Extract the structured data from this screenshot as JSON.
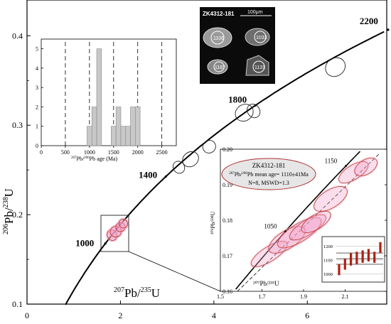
{
  "chart_data": [
    {
      "type": "scatter",
      "subtype": "concordia",
      "title": "",
      "xlabel_base": "Pb/",
      "xlabel_sup1": "207",
      "xlabel_sup2": "235",
      "xlabel_el": "U",
      "ylabel_sup1": "206",
      "ylabel_base": "Pb/",
      "ylabel_sup2": "238",
      "ylabel_el": "U",
      "xlim": [
        0,
        7.7
      ],
      "ylim": [
        0.1,
        0.44
      ],
      "xticks": [
        "0",
        "2",
        "4",
        "6"
      ],
      "yticks": [
        "0.1",
        "0.2",
        "0.3",
        "0.4"
      ],
      "grid": false,
      "age_labels": [
        "1000",
        "1400",
        "1800",
        "2200"
      ],
      "ellipses": [
        {
          "x": 1.82,
          "y": 0.177,
          "rx": 0.1,
          "ry": 0.006,
          "tilt": 30
        },
        {
          "x": 1.9,
          "y": 0.181,
          "rx": 0.12,
          "ry": 0.006,
          "tilt": 30
        },
        {
          "x": 2.0,
          "y": 0.186,
          "rx": 0.1,
          "ry": 0.005,
          "tilt": 30
        },
        {
          "x": 2.06,
          "y": 0.19,
          "rx": 0.09,
          "ry": 0.005,
          "tilt": 30
        },
        {
          "x": 3.25,
          "y": 0.253,
          "rx": 0.12,
          "ry": 0.007,
          "tilt": 35
        },
        {
          "x": 3.5,
          "y": 0.262,
          "rx": 0.18,
          "ry": 0.008,
          "tilt": 35
        },
        {
          "x": 3.9,
          "y": 0.276,
          "rx": 0.14,
          "ry": 0.007,
          "tilt": 35
        },
        {
          "x": 4.65,
          "y": 0.314,
          "rx": 0.2,
          "ry": 0.009,
          "tilt": 35
        },
        {
          "x": 4.85,
          "y": 0.316,
          "rx": 0.13,
          "ry": 0.008,
          "tilt": 35
        },
        {
          "x": 6.6,
          "y": 0.365,
          "rx": 0.22,
          "ry": 0.01,
          "tilt": 35
        }
      ]
    },
    {
      "type": "bar",
      "subtype": "histogram",
      "xlabel_sup": "207",
      "xlabel_mid": "Pb/",
      "xlabel_sup2": "206",
      "xlabel_end": "Pb age (Ma)",
      "xticks": [
        "0",
        "500",
        "1000",
        "1500",
        "2000",
        "2500"
      ],
      "xlim": [
        0,
        2800
      ],
      "ylim": [
        0,
        5.5
      ],
      "yticks": [
        "0",
        "1",
        "2",
        "3",
        "4",
        "5"
      ],
      "bin_width": 100,
      "bins": [
        {
          "start": 950,
          "count": 1
        },
        {
          "start": 1050,
          "count": 2
        },
        {
          "start": 1150,
          "count": 5
        },
        {
          "start": 1450,
          "count": 1
        },
        {
          "start": 1550,
          "count": 2
        },
        {
          "start": 1650,
          "count": 1
        },
        {
          "start": 1750,
          "count": 1
        },
        {
          "start": 1850,
          "count": 2
        },
        {
          "start": 1950,
          "count": 2
        }
      ],
      "dashed_lines": [
        500,
        1000,
        1500,
        2000,
        2500
      ]
    },
    {
      "type": "scatter",
      "subtype": "concordia-zoom",
      "xlim": [
        1.5,
        2.3
      ],
      "ylim": [
        0.16,
        0.2
      ],
      "xticks": [
        "1.5",
        "1.7",
        "1.9",
        "2.1"
      ],
      "yticks": [
        "0.16",
        "0.17",
        "0.18",
        "0.19",
        "0.20"
      ],
      "ylabel": "²⁰⁶Pb/²³⁸U",
      "xlabel": "²⁰⁷Pb/²³⁵U",
      "age_labels": [
        "1050",
        "1150"
      ],
      "ellipses": [
        {
          "x": 1.735,
          "y": 0.1705,
          "rx": 0.1,
          "ry": 0.004,
          "tilt": 32
        },
        {
          "x": 1.82,
          "y": 0.1745,
          "rx": 0.1,
          "ry": 0.005,
          "tilt": 32
        },
        {
          "x": 1.88,
          "y": 0.1765,
          "rx": 0.12,
          "ry": 0.005,
          "tilt": 32
        },
        {
          "x": 1.92,
          "y": 0.178,
          "rx": 0.1,
          "ry": 0.004,
          "tilt": 32
        },
        {
          "x": 1.96,
          "y": 0.1795,
          "rx": 0.08,
          "ry": 0.004,
          "tilt": 32
        },
        {
          "x": 2.03,
          "y": 0.186,
          "rx": 0.09,
          "ry": 0.005,
          "tilt": 32
        },
        {
          "x": 2.14,
          "y": 0.1935,
          "rx": 0.08,
          "ry": 0.004,
          "tilt": 32
        },
        {
          "x": 2.2,
          "y": 0.195,
          "rx": 0.06,
          "ry": 0.004,
          "tilt": 32
        }
      ],
      "box": {
        "label": "ZK4312-181",
        "line2_sup": "207",
        "line2_mid": "Pb/",
        "line2_sup2": "206",
        "line2_end": "Pb mean age= 1110±41Ma",
        "line3": "N=8, MSWD=1.3"
      }
    },
    {
      "type": "bar",
      "subtype": "weighted-mean",
      "ylim": [
        940,
        1270
      ],
      "yticks": [
        "1000",
        "1100",
        "1200"
      ],
      "mean": 1110,
      "mean_err": 41,
      "bars": [
        {
          "low": 990,
          "high": 1070
        },
        {
          "low": 1030,
          "high": 1110
        },
        {
          "low": 1060,
          "high": 1150
        },
        {
          "low": 1070,
          "high": 1160
        },
        {
          "low": 1080,
          "high": 1170
        },
        {
          "low": 1090,
          "high": 1180
        },
        {
          "low": 1080,
          "high": 1160
        },
        {
          "low": 1150,
          "high": 1230
        }
      ],
      "bar_color": "#b02010"
    }
  ],
  "inset_image": {
    "sample": "ZK4312-181",
    "scale": "100μm",
    "spots": [
      "1106",
      "1033",
      "1187",
      "1131"
    ]
  },
  "colors": {
    "ellipse_main": "#222222",
    "ellipse_red": "#c0392b",
    "halo": "#f0a0c8",
    "box_fill": "#e6e6e6",
    "box_border": "#b03030"
  }
}
